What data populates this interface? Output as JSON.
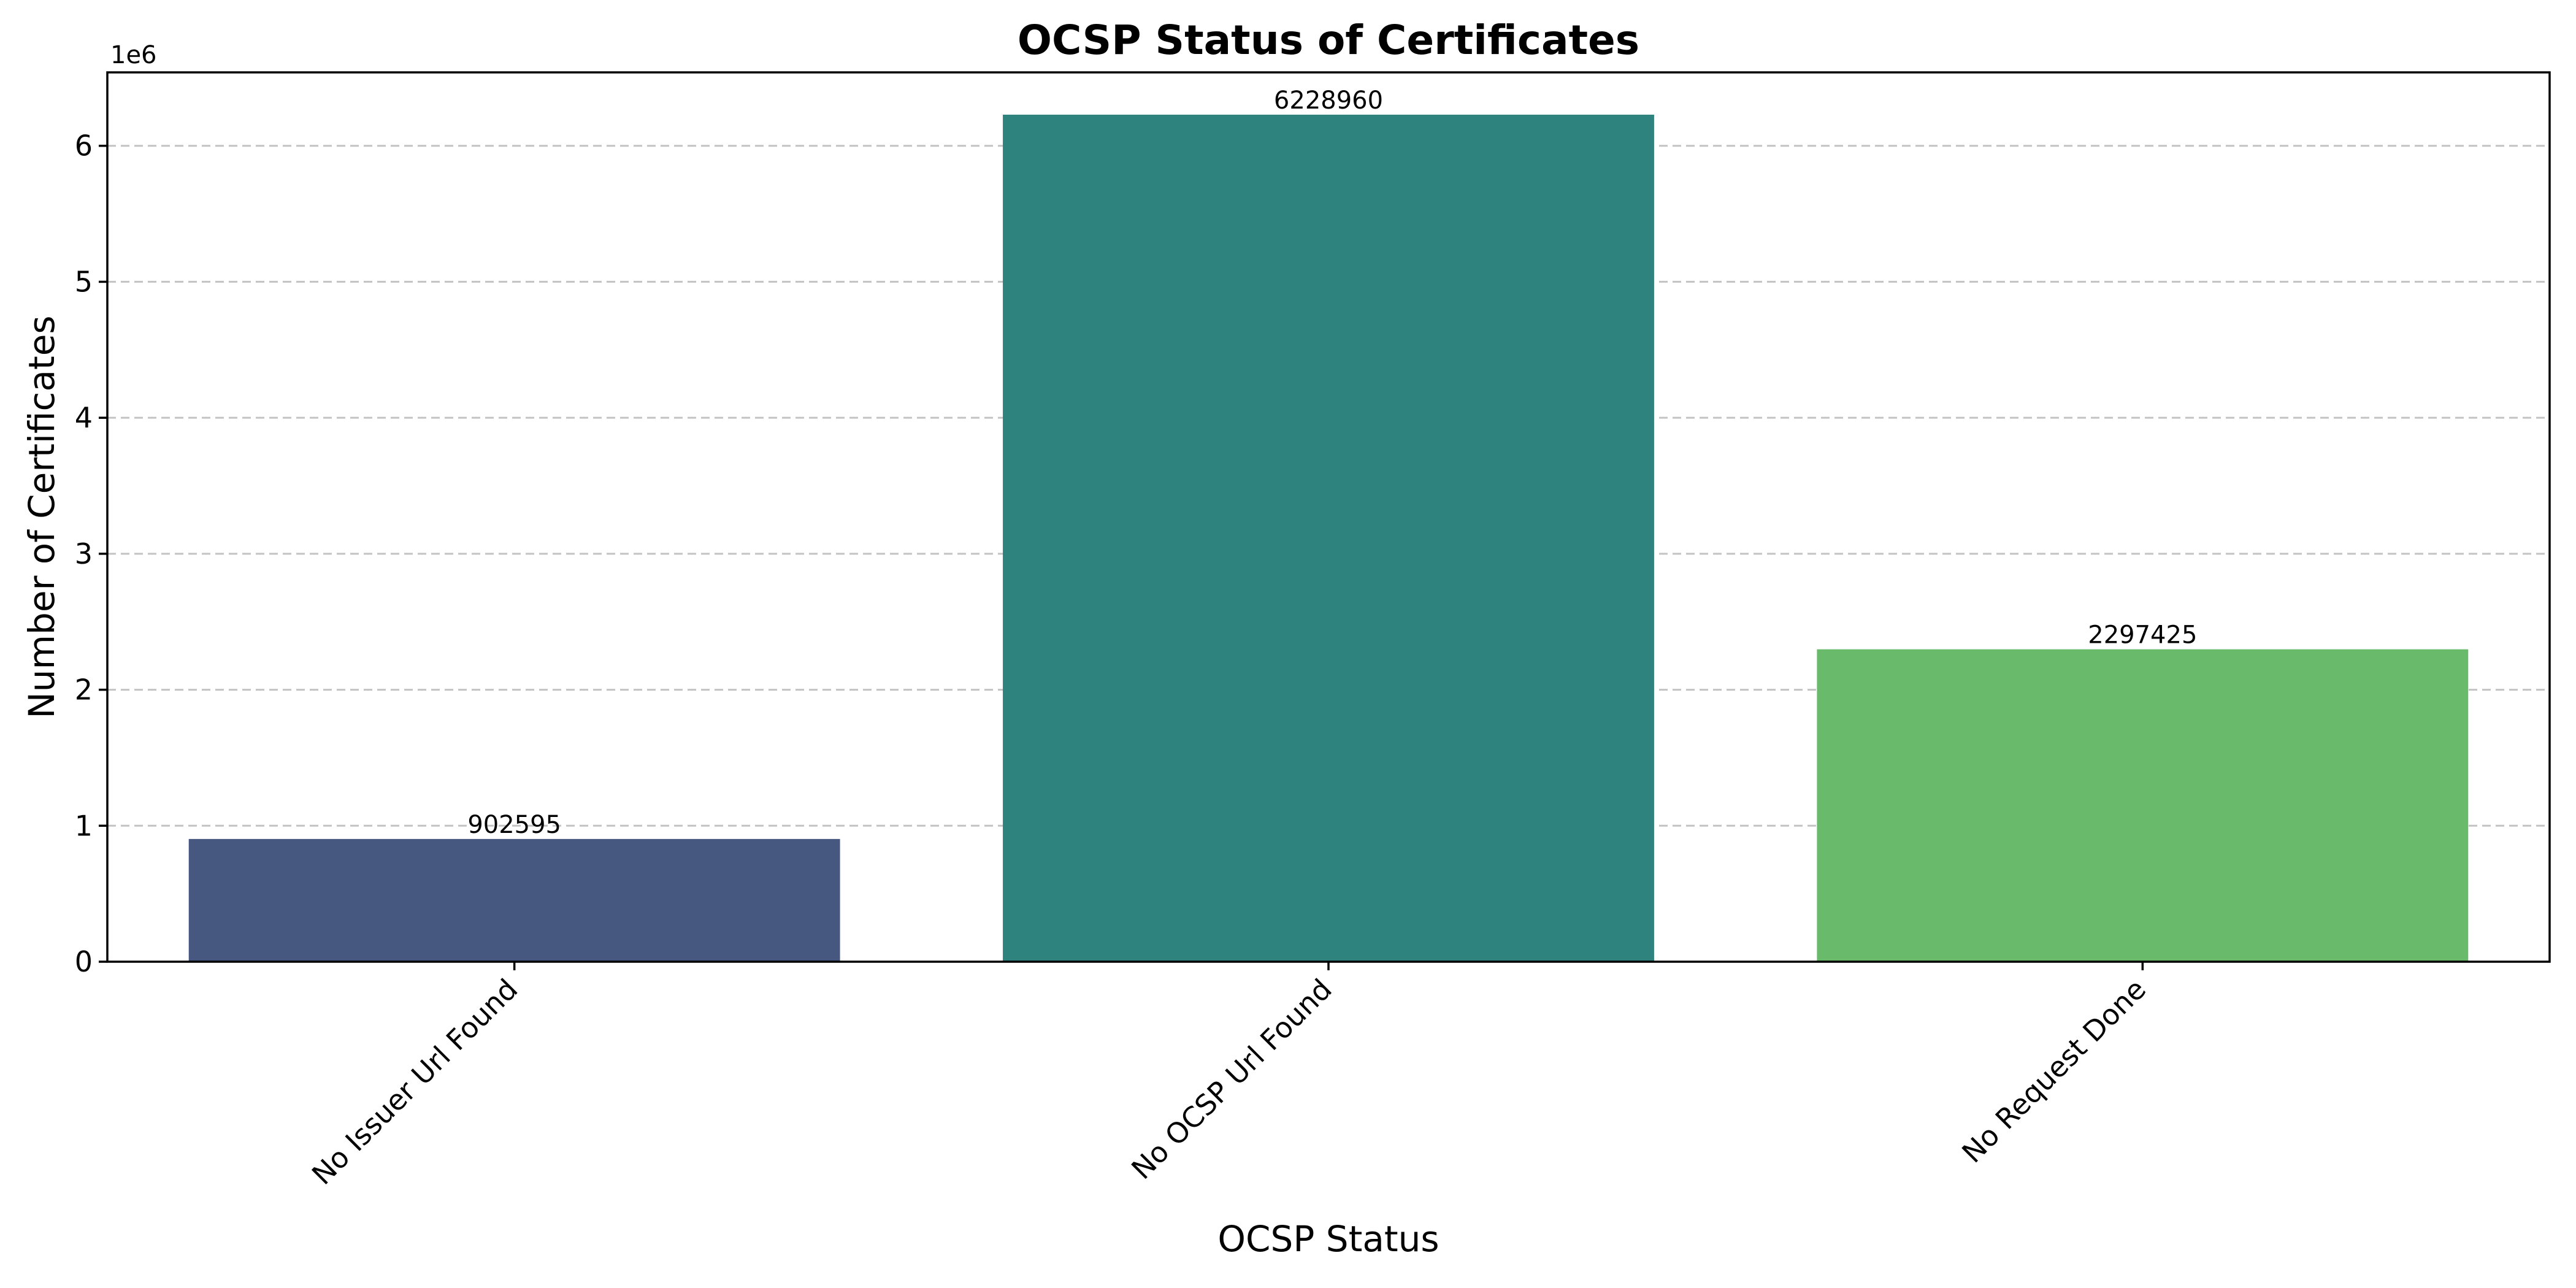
{
  "chart_data": {
    "type": "bar",
    "title": "OCSP Status of Certificates",
    "xlabel": "OCSP Status",
    "ylabel": "Number of Certificates",
    "y_offset_label": "1e6",
    "categories": [
      "No Issuer Url Found",
      "No OCSP Url Found",
      "No Request Done"
    ],
    "values": [
      902595,
      6228960,
      2297425
    ],
    "data_labels": [
      "902595",
      "6228960",
      "2297425"
    ],
    "colors": [
      "#46587f",
      "#2e837e",
      "#6aba6b"
    ],
    "ylim": [
      0,
      6540000
    ],
    "yticks": [
      0,
      1000000,
      2000000,
      3000000,
      4000000,
      5000000,
      6000000
    ],
    "ytick_labels": [
      "0",
      "1",
      "2",
      "3",
      "4",
      "5",
      "6"
    ],
    "grid": "y-dashed",
    "legend": "none"
  }
}
